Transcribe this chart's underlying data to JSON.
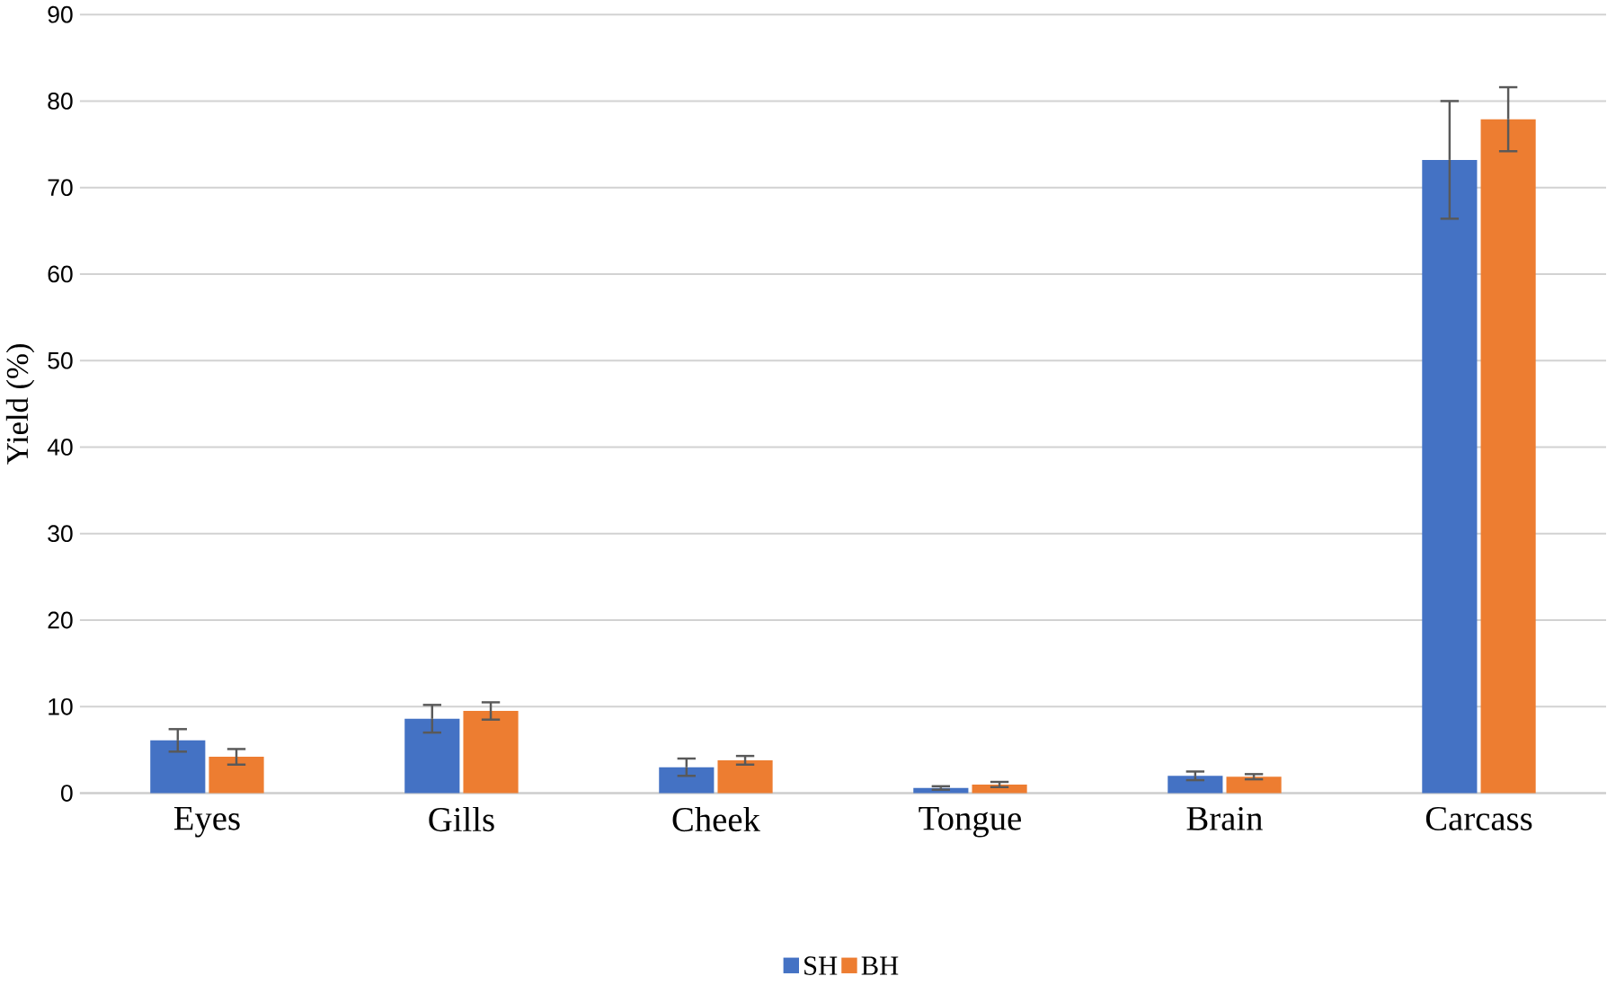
{
  "chart_data": {
    "type": "bar",
    "ylabel": "Yield (%)",
    "categories": [
      "Eyes",
      "Gills",
      "Cheek",
      "Tongue",
      "Brain",
      "Carcass"
    ],
    "series": [
      {
        "name": "SH",
        "color": "#4472c4",
        "values": [
          6.1,
          8.6,
          3.0,
          0.6,
          2.0,
          73.2
        ],
        "errors": [
          1.3,
          1.6,
          1.0,
          0.2,
          0.5,
          6.8
        ]
      },
      {
        "name": "BH",
        "color": "#ed7d31",
        "values": [
          4.2,
          9.5,
          3.8,
          1.0,
          1.9,
          77.9
        ],
        "errors": [
          0.9,
          1.0,
          0.5,
          0.3,
          0.3,
          3.7
        ]
      }
    ],
    "ylim": [
      0,
      90
    ],
    "yticks": [
      0,
      10,
      20,
      30,
      40,
      50,
      60,
      70,
      80,
      90
    ],
    "grid": "y",
    "legend": "bottom"
  }
}
